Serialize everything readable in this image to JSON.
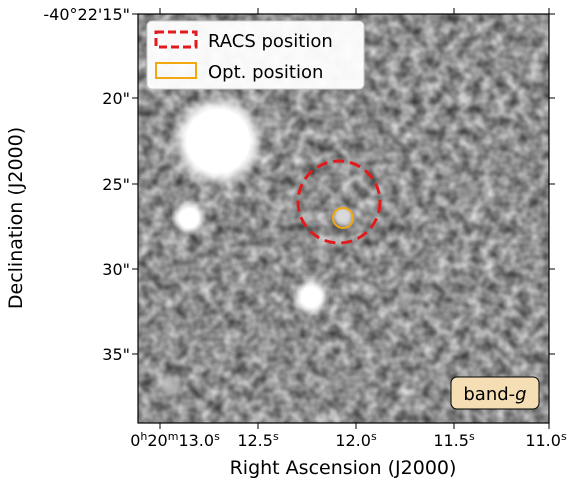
{
  "figure": {
    "x_axis_label": "Right Ascension (J2000)",
    "y_axis_label": "Declination (J2000)",
    "x_ticks": [
      {
        "h": "0",
        "m": "20",
        "s": "13.0",
        "sup_h": "h",
        "sup_m": "m",
        "sup_s": "s"
      },
      {
        "s": "12.5",
        "sup_s": "s"
      },
      {
        "s": "12.0",
        "sup_s": "s"
      },
      {
        "s": "11.5",
        "sup_s": "s"
      },
      {
        "s": "11.0",
        "sup_s": "s"
      }
    ],
    "y_ticks": [
      "-40°22'15\"",
      "20\"",
      "25\"",
      "30\"",
      "35\""
    ],
    "legend": {
      "racs": {
        "label": "RACS position",
        "color": "#e31a1c"
      },
      "opt": {
        "label": "Opt. position",
        "color": "#f2a90f"
      }
    },
    "band_label": {
      "prefix": "band-",
      "italic": "g"
    }
  },
  "chart_data": {
    "type": "scatter",
    "xlabel": "Right Ascension (J2000)",
    "ylabel": "Declination (J2000)",
    "x_ticks_seconds": [
      13.0,
      12.5,
      12.0,
      11.5,
      11.0
    ],
    "y_ticks_arcsec": [
      15,
      20,
      25,
      30,
      35
    ],
    "markers": [
      {
        "name": "RACS position",
        "ra_s": 12.06,
        "dec_arcsec": 26.1,
        "radius_arcsec": 2.4,
        "style": "dashed-circle",
        "color": "#e31a1c"
      },
      {
        "name": "Opt. position",
        "ra_s": 12.04,
        "dec_arcsec": 27.1,
        "radius_arcsec": 0.6,
        "style": "solid-circle",
        "color": "#f2a90f"
      }
    ]
  }
}
